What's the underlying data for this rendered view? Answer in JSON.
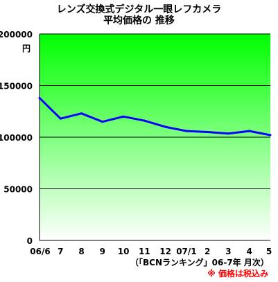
{
  "chart_data": {
    "type": "area",
    "title_line1": "レンズ交換式デジタル一眼レフカメラ",
    "title_line2": "平均価格の 推移",
    "y_unit": "円",
    "categories": [
      "06/6",
      "7",
      "8",
      "9",
      "10",
      "11",
      "12",
      "07/1",
      "2",
      "3",
      "4",
      "5"
    ],
    "series": [
      {
        "values": [
          138000,
          118000,
          123000,
          115000,
          120000,
          116000,
          110000,
          106000,
          105000,
          103500,
          106000,
          102000
        ]
      }
    ],
    "y_ticks": [
      "200000",
      "150000",
      "100000",
      "50000",
      "0"
    ],
    "ylim": [
      0,
      200000
    ],
    "grid": true,
    "line_color": "#0000ff",
    "fill_top_color": "#00ff00",
    "fill_bottom_color": "#ffffff",
    "source_note": "（「BCNランキング」06-7年 月次）",
    "tax_note": "※ 価格は税込み"
  }
}
